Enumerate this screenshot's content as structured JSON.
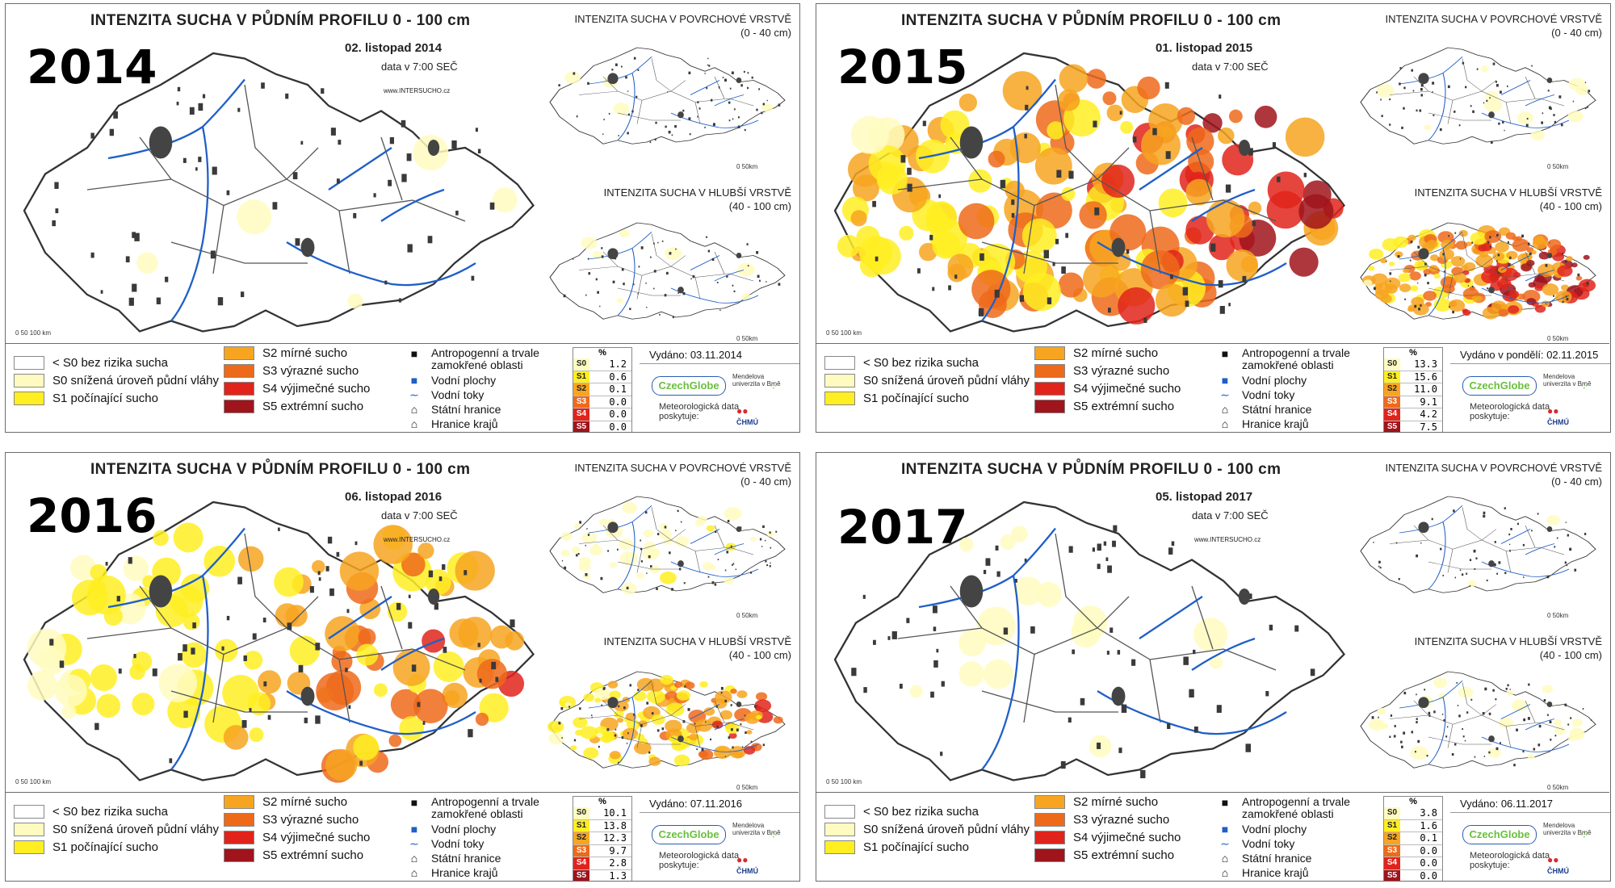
{
  "colors": {
    "S0": "#fffbc0",
    "S1": "#ffee22",
    "S2": "#f7a520",
    "S3": "#ee6a1b",
    "S4": "#e0241b",
    "S5": "#a0141c",
    "none": "#ffffff",
    "water": "#1f5fc7",
    "urban": "#3a3a3a"
  },
  "common": {
    "main_title": "INTENZITA SUCHA V PŮDNÍM PROFILU 0 - 100 cm",
    "time": "data v 7:00 SEČ",
    "surface_title": "INTENZITA SUCHA V POVRCHOVÉ VRSTVĚ",
    "surface_range": "(0 - 40 cm)",
    "deep_title": "INTENZITA SUCHA V HLUBŠÍ VRSTVĚ",
    "deep_range": "(40 - 100 cm)",
    "scale_main": "0        50        100 km",
    "scale_mini": "0      50km",
    "legend": {
      "none": "< S0 bez rizika sucha",
      "s0": "S0 snížená úroveň půdní vláhy",
      "s1": "S1 počínající sucho",
      "s2": "S2 mírné sucho",
      "s3": "S3 výrazné sucho",
      "s4": "S4 výjimečné sucho",
      "s5": "S5 extrémní sucho",
      "anthro": "Antropogenní a trvale zamokřené oblasti",
      "water_bodies": "Vodní plochy",
      "rivers": "Vodní toky",
      "border": "Státní hranice",
      "regions": "Hranice krajů"
    },
    "pct_header": "%",
    "pct_labels": [
      "S0",
      "S1",
      "S2",
      "S3",
      "S4",
      "S5"
    ],
    "logo_czechglobe": "CzechGlobe",
    "logo_mendel": "Mendelova univerzita v Brně",
    "logo_meteo": "Meteorologická data poskytuje:",
    "logo_chmu": "ČHMÚ"
  },
  "panels": [
    {
      "year": "2014",
      "date": "02. listopad 2014",
      "site": "www.INTERSUCHO.cz",
      "issued": "Vydáno: 03.11.2014",
      "pct": [
        "1.2",
        "0.6",
        "0.1",
        "0.0",
        "0.0",
        "0.0"
      ],
      "intensity": {
        "main": 0.02,
        "surface": 0.02,
        "deep": 0.04
      }
    },
    {
      "year": "2015",
      "date": "01. listopad 2015",
      "site": "",
      "issued": "Vydáno v pondělí: 02.11.2015",
      "pct": [
        "13.3",
        "15.6",
        "11.0",
        "9.1",
        "4.2",
        "7.5"
      ],
      "intensity": {
        "main": 0.75,
        "surface": 0.05,
        "deep": 0.9
      }
    },
    {
      "year": "2016",
      "date": "06. listopad 2016",
      "site": "www.INTERSUCHO.cz",
      "issued": "Vydáno: 07.11.2016",
      "pct": [
        "10.1",
        "13.8",
        "12.3",
        "9.7",
        "2.8",
        "1.3"
      ],
      "intensity": {
        "main": 0.55,
        "surface": 0.2,
        "deep": 0.6
      }
    },
    {
      "year": "2017",
      "date": "05. listopad 2017",
      "site": "www.INTERSUCHO.cz",
      "issued": "Vydáno: 06.11.2017",
      "pct": [
        "3.8",
        "1.6",
        "0.1",
        "0.0",
        "0.0",
        "0.0"
      ],
      "intensity": {
        "main": 0.08,
        "surface": 0.01,
        "deep": 0.12
      }
    }
  ]
}
